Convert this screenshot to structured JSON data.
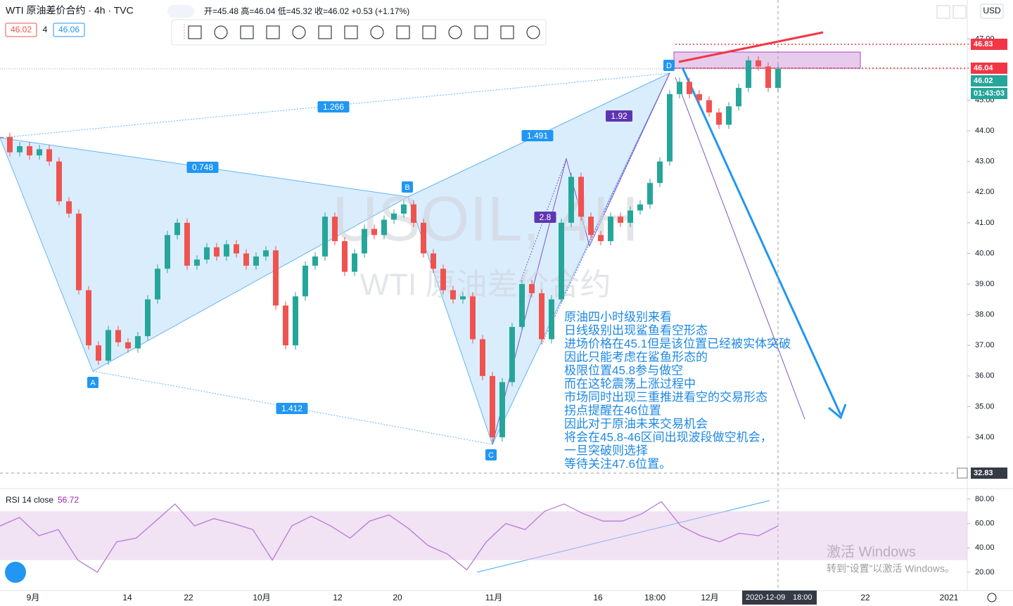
{
  "header": {
    "symbol": "WTI 原油差价合约 · 4h · TVC",
    "ohlc": "开=45.48 高=46.04 低=45.32 收=46.02 +0.53 (+1.17%)",
    "bid": "46.02",
    "spread": "4",
    "ask": "46.06",
    "currency": "USD"
  },
  "watermark": {
    "symbol": "USOIL, 4H",
    "name": "WTI 原油差价合约"
  },
  "chart_data": [
    {
      "type": "candlestick",
      "values": [
        43.8,
        43.3,
        43.5,
        43.2,
        43.4,
        43.0,
        41.7,
        41.3,
        38.8,
        37.0,
        36.5,
        37.5,
        37.1,
        36.9,
        37.3,
        38.5,
        39.5,
        40.6,
        41.0,
        39.6,
        39.8,
        40.2,
        39.9,
        40.3,
        40.0,
        39.6,
        39.9,
        40.1,
        38.3,
        37.0,
        38.6,
        39.6,
        39.9,
        41.2,
        40.4,
        39.4,
        40.0,
        40.8,
        40.6,
        41.1,
        41.3,
        41.6,
        41.0,
        40.0,
        39.5,
        38.8,
        38.5,
        38.6,
        37.2,
        36.0,
        34.0,
        35.8,
        37.6,
        39.0,
        38.7,
        37.2,
        38.5,
        41.0,
        42.5,
        41.2,
        40.6,
        40.4,
        41.2,
        41.0,
        41.4,
        41.6,
        42.3,
        43.0,
        45.2,
        45.6,
        45.2,
        45.0,
        44.6,
        44.2,
        44.8,
        45.4,
        46.3,
        46.1,
        45.4,
        46.02
      ],
      "colors": {
        "up": "#26a69a",
        "down": "#ef5350"
      },
      "ylim": [
        32.44,
        48.27
      ],
      "yticks": [
        {
          "value": 34,
          "label": "34.00"
        },
        {
          "value": 35,
          "label": "35.00"
        },
        {
          "value": 36,
          "label": "36.00"
        },
        {
          "value": 37,
          "label": "37.00"
        },
        {
          "value": 38,
          "label": "38.00"
        },
        {
          "value": 39,
          "label": "39.00"
        },
        {
          "value": 40,
          "label": "40.00"
        },
        {
          "value": 41,
          "label": "41.00"
        },
        {
          "value": 42,
          "label": "42.00"
        },
        {
          "value": 43,
          "label": "43.00"
        },
        {
          "value": 44,
          "label": "44.00"
        },
        {
          "value": 45,
          "label": "45.00"
        },
        {
          "value": 47,
          "label": "47.00"
        }
      ],
      "xtick_labels": [
        "9月",
        "14",
        "22",
        "10月",
        "12",
        "20",
        "11月",
        "16",
        "18:00",
        "12月",
        "22",
        "2021"
      ],
      "crosshair_time": "2020-12-09",
      "crosshair_hour": "18:00",
      "price_labels": [
        "46.83",
        "46.04",
        "46.02",
        "01:43:03",
        "32.83"
      ]
    },
    {
      "type": "line",
      "title": "RSI 14 close",
      "last": "56.72",
      "color": "#b57bd6",
      "values": [
        58,
        65,
        50,
        55,
        30,
        20,
        45,
        48,
        62,
        76,
        58,
        64,
        60,
        55,
        30,
        58,
        66,
        58,
        48,
        62,
        67,
        56,
        42,
        35,
        22,
        45,
        60,
        55,
        70,
        76,
        68,
        62,
        62,
        68,
        78,
        58,
        50,
        45,
        52,
        50,
        58
      ],
      "ylim": [
        7.88,
        88.65
      ],
      "yticks": [
        {
          "value": 20,
          "label": "20.00"
        },
        {
          "value": 40,
          "label": "40.00"
        },
        {
          "value": 60,
          "label": "60.00"
        },
        {
          "value": 80,
          "label": "80.00"
        }
      ]
    }
  ],
  "pattern": {
    "points": [
      "A",
      "B",
      "C",
      "D"
    ],
    "ratios": [
      "1.266",
      "0.748",
      "1.491",
      "1.92",
      "2.8",
      "1.412"
    ]
  },
  "annotation": {
    "lines": [
      "原油四小时级别来看",
      "日线级别出现鲨鱼看空形态",
      "进场价格在45.1但是该位置已经被实体突破",
      "因此只能考虑在鲨鱼形态的",
      "极限位置45.8参与做空",
      "而在这轮震荡上涨过程中",
      "市场同时出现三重推进看空的交易形态",
      "拐点提醒在46位置",
      "因此对于原油未来交易机会",
      "将会在45.8-46区间出现波段做空机会，",
      "一旦突破则选择",
      "等待关注47.6位置。"
    ]
  },
  "windows": {
    "title": "激活 Windows",
    "hint": "转到“设置”以激活 Windows。"
  }
}
